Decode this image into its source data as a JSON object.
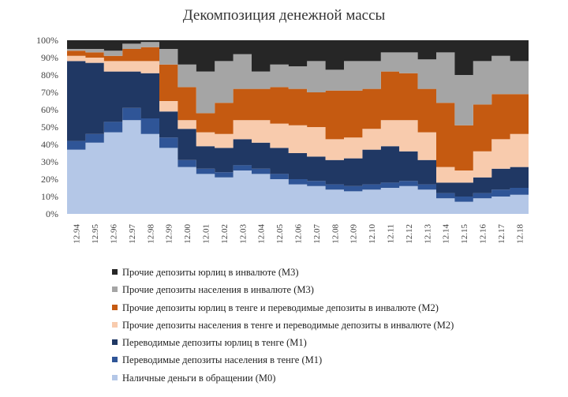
{
  "chart_data": {
    "type": "area",
    "stacked": true,
    "title": "Декомпозиция денежной массы",
    "xlabel": "",
    "ylabel": "",
    "ylim": [
      0,
      100
    ],
    "yticks": [
      "0%",
      "10%",
      "20%",
      "30%",
      "40%",
      "50%",
      "60%",
      "70%",
      "80%",
      "90%",
      "100%"
    ],
    "x": [
      "12.94",
      "12.95",
      "12.96",
      "12.97",
      "12.98",
      "12.99",
      "12.00",
      "12.01",
      "12.02",
      "12.03",
      "12.04",
      "12.05",
      "12.06",
      "12.07",
      "12.08",
      "12.09",
      "12.10",
      "12.11",
      "12.12",
      "12.13",
      "12.14",
      "12.15",
      "12.16",
      "12.17",
      "12.18"
    ],
    "legend_position": "bottom",
    "grid": false,
    "series": [
      {
        "name": "Наличные деньги в обращении (М0)",
        "color": "#b4c7e7",
        "values": [
          37,
          41,
          47,
          54,
          46,
          38,
          27,
          23,
          21,
          25,
          23,
          20,
          17,
          16,
          14,
          13,
          14,
          15,
          16,
          14,
          9,
          7,
          9,
          10,
          11
        ]
      },
      {
        "name": "Переводимые депозиты населения в тенге (М1)",
        "color": "#2f5597",
        "values": [
          5,
          5,
          6,
          7,
          9,
          6,
          4,
          3,
          3,
          3,
          3,
          3,
          3,
          3,
          3,
          3,
          3,
          3,
          3,
          3,
          3,
          3,
          3,
          4,
          4
        ]
      },
      {
        "name": "Переводимые депозиты юрлиц в тенге (М1)",
        "color": "#203864",
        "values": [
          46,
          41,
          29,
          21,
          26,
          15,
          18,
          13,
          14,
          15,
          15,
          15,
          15,
          14,
          14,
          16,
          20,
          21,
          17,
          14,
          6,
          8,
          9,
          12,
          12
        ]
      },
      {
        "name": "Прочие депозиты населения в тенге и переводимые депозиты в инвалюте (М2)",
        "color": "#f8cbad",
        "values": [
          3,
          3,
          6,
          6,
          7,
          6,
          5,
          8,
          8,
          11,
          13,
          14,
          16,
          17,
          12,
          12,
          12,
          15,
          18,
          16,
          9,
          7,
          15,
          17,
          19
        ]
      },
      {
        "name": "Прочие депозиты юрлиц в тенге и переводимые депозиты в инвалюте (М2)",
        "color": "#c55a11",
        "values": [
          3,
          3,
          3,
          7,
          8,
          21,
          19,
          11,
          18,
          18,
          18,
          21,
          21,
          20,
          28,
          27,
          23,
          28,
          27,
          25,
          37,
          26,
          27,
          26,
          23
        ]
      },
      {
        "name": "Прочие депозиты населения в инвалюте (М3)",
        "color": "#a5a5a5",
        "values": [
          1,
          2,
          3,
          3,
          3,
          9,
          13,
          24,
          24,
          20,
          10,
          13,
          13,
          18,
          12,
          17,
          16,
          11,
          12,
          17,
          29,
          29,
          25,
          22,
          19
        ]
      },
      {
        "name": "Прочие депозиты юрлиц в инвалюте (М3)",
        "color": "#262626",
        "values": [
          5,
          5,
          6,
          2,
          1,
          5,
          14,
          18,
          12,
          8,
          18,
          14,
          15,
          12,
          17,
          12,
          12,
          7,
          7,
          11,
          7,
          20,
          12,
          9,
          12
        ]
      }
    ]
  }
}
